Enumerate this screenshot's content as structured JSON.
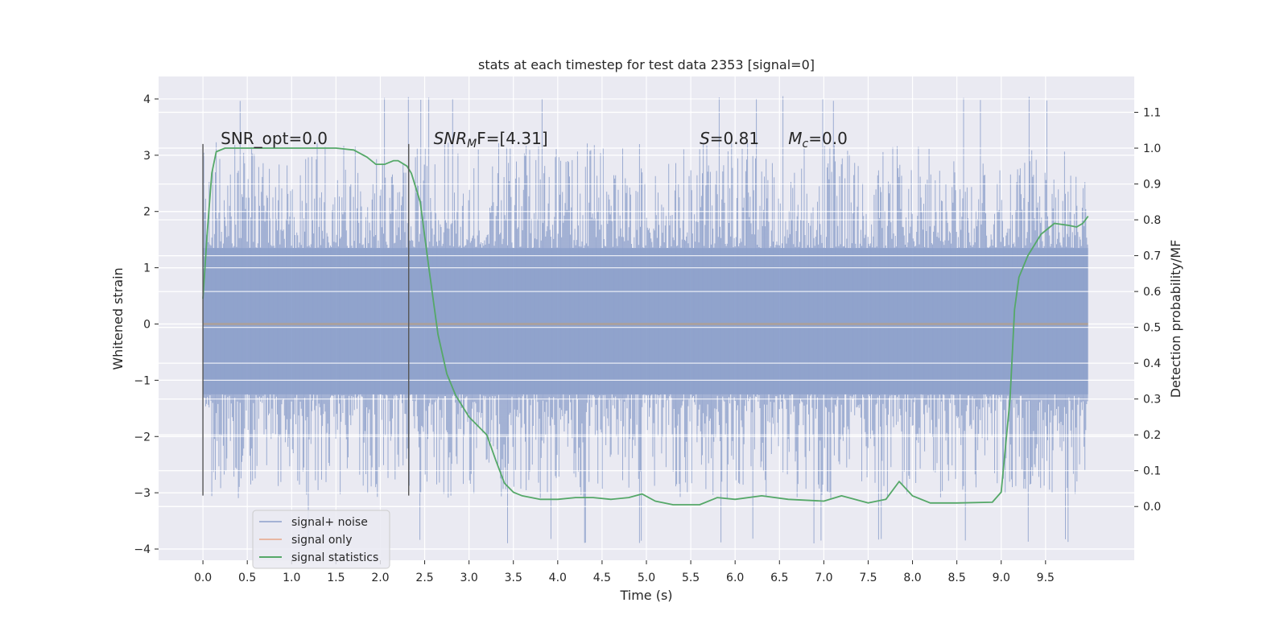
{
  "chart_data": {
    "type": "line",
    "title": "stats at each timestep for test data 2353 [signal=0]",
    "xlabel": "Time (s)",
    "ylabel": "Whitened strain",
    "y2label": "Detection probability/MF",
    "xlim": [
      -0.5,
      10.5
    ],
    "ylim": [
      -4.2,
      4.4
    ],
    "y2lim": [
      -0.15,
      1.2
    ],
    "x_ticks": [
      "0.0",
      "0.5",
      "1.0",
      "1.5",
      "2.0",
      "2.5",
      "3.0",
      "3.5",
      "4.0",
      "4.5",
      "5.0",
      "5.5",
      "6.0",
      "6.5",
      "7.0",
      "7.5",
      "8.0",
      "8.5",
      "9.0",
      "9.5"
    ],
    "y_ticks": [
      "4",
      "3",
      "2",
      "1",
      "0",
      "−1",
      "−2",
      "−3",
      "−4"
    ],
    "y2_ticks": [
      "1.1",
      "1.0",
      "0.9",
      "0.8",
      "0.7",
      "0.6",
      "0.5",
      "0.4",
      "0.3",
      "0.2",
      "0.1",
      "0.0"
    ],
    "grid": true,
    "legend_position": "bottom-left",
    "series": [
      {
        "name": "signal+ noise",
        "color": "#8da0cb",
        "axis": "left",
        "x_range": [
          0.0,
          9.98
        ],
        "dense_range": [
          -1.25,
          1.35
        ],
        "envelope": [
          -3.9,
          4.05
        ]
      },
      {
        "name": "signal only",
        "color": "#e8a488",
        "axis": "left",
        "x": [
          0.0,
          9.98
        ],
        "y": [
          0.0,
          0.0
        ]
      },
      {
        "name": "signal statistics",
        "color": "#55a868",
        "axis": "right",
        "x": [
          0.0,
          0.05,
          0.1,
          0.15,
          0.25,
          0.4,
          0.6,
          1.0,
          1.5,
          1.7,
          1.85,
          1.95,
          2.05,
          2.15,
          2.2,
          2.3,
          2.35,
          2.45,
          2.55,
          2.65,
          2.75,
          2.85,
          3.0,
          3.1,
          3.2,
          3.3,
          3.4,
          3.5,
          3.6,
          3.8,
          4.0,
          4.2,
          4.4,
          4.6,
          4.8,
          4.95,
          5.1,
          5.3,
          5.6,
          5.8,
          6.0,
          6.3,
          6.6,
          7.0,
          7.2,
          7.5,
          7.7,
          7.85,
          8.0,
          8.2,
          8.5,
          8.9,
          9.0,
          9.1,
          9.15,
          9.2,
          9.3,
          9.45,
          9.6,
          9.75,
          9.85,
          9.92,
          9.98
        ],
        "y": [
          0.58,
          0.77,
          0.93,
          0.99,
          1.0,
          1.0,
          1.0,
          1.0,
          1.0,
          0.995,
          0.975,
          0.955,
          0.955,
          0.965,
          0.965,
          0.95,
          0.93,
          0.85,
          0.66,
          0.48,
          0.37,
          0.31,
          0.25,
          0.225,
          0.2,
          0.13,
          0.065,
          0.04,
          0.03,
          0.02,
          0.02,
          0.025,
          0.025,
          0.02,
          0.025,
          0.035,
          0.015,
          0.005,
          0.005,
          0.025,
          0.02,
          0.03,
          0.02,
          0.015,
          0.03,
          0.01,
          0.02,
          0.07,
          0.03,
          0.01,
          0.01,
          0.012,
          0.04,
          0.3,
          0.55,
          0.64,
          0.7,
          0.76,
          0.79,
          0.785,
          0.78,
          0.79,
          0.81
        ]
      }
    ],
    "annotations": [
      {
        "text": "SNR_opt=0.0",
        "x": 0.2,
        "y": 3.2
      },
      {
        "text_main": "SNR",
        "text_sub": "M",
        "text_rest": "F=[4.31]",
        "x": 2.6,
        "y": 3.2
      },
      {
        "text_main": "S",
        "text_rest": "=0.81",
        "x": 5.6,
        "y": 3.2
      },
      {
        "text_main": "M",
        "text_sub": "c",
        "text_rest": "=0.0",
        "x": 6.6,
        "y": 3.2
      }
    ],
    "markers": [
      {
        "x": 0.0,
        "ymin": -3.05,
        "ymax": 3.2
      },
      {
        "x": 2.32,
        "ymin": -3.05,
        "ymax": 3.2
      }
    ]
  }
}
